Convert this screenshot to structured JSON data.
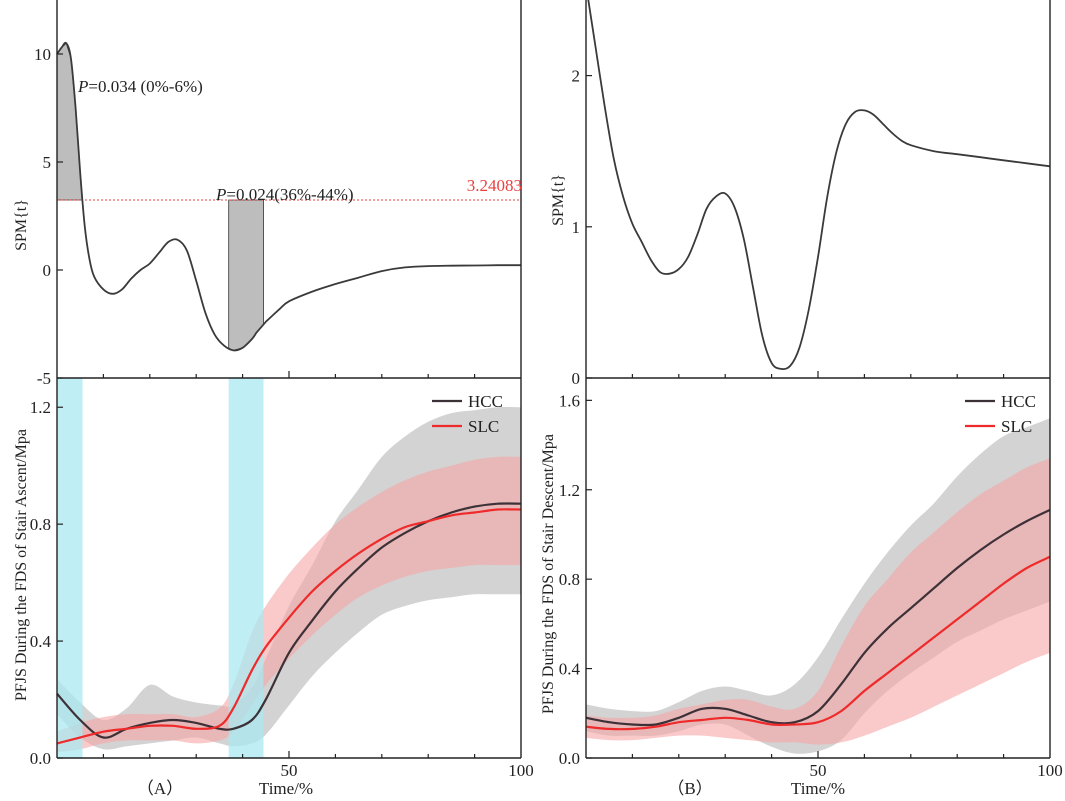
{
  "colors": {
    "hcc": "#3d3138",
    "slc": "#ee2a2a",
    "hcc_band": "#c4c4c4",
    "slc_band": "#f7a5a5",
    "overlap_band": "#d98e8e",
    "cluster_fill": "#bdbdbd",
    "highlight": "#a9e8f2",
    "threshold": "#e8413f",
    "spm_line": "#3a3a3a"
  },
  "figure": {
    "panel_a_label": "（A）",
    "panel_b_label": "（B）",
    "xlabel": "Time/%"
  },
  "chart_data": [
    {
      "id": "A-top",
      "type": "line",
      "ylabel": "SPM{t}",
      "xlim": [
        0,
        100
      ],
      "ylim": [
        -5,
        12.5
      ],
      "yticks": [
        -5,
        0,
        5,
        10
      ],
      "ytick_labels": [
        "-5",
        "0",
        "5",
        "10"
      ],
      "threshold": 3.24083,
      "threshold_label": "3.24083",
      "clusters": [
        {
          "from": 0,
          "to": 5.5,
          "label_p": "P",
          "label_rest": "=0.034 (0%-6%)"
        },
        {
          "from": 37,
          "to": 44.5,
          "label_p": "P",
          "label_rest": "=0.024(36%-44%)"
        }
      ],
      "series": [
        {
          "name": "SPM{t}",
          "x": [
            0,
            1,
            2,
            3,
            4,
            5,
            6,
            7,
            8,
            10,
            12,
            14,
            16,
            18,
            20,
            22,
            24,
            26,
            28,
            30,
            32,
            34,
            36,
            38,
            40,
            42,
            43,
            44,
            45,
            46,
            48,
            50,
            55,
            60,
            65,
            70,
            75,
            80,
            85,
            90,
            95,
            100
          ],
          "y": [
            10.0,
            10.3,
            10.5,
            9.8,
            7.5,
            4.5,
            2.0,
            0.5,
            -0.3,
            -0.9,
            -1.1,
            -0.9,
            -0.4,
            0.0,
            0.3,
            0.8,
            1.3,
            1.4,
            0.9,
            -0.5,
            -2.0,
            -3.0,
            -3.5,
            -3.72,
            -3.6,
            -3.2,
            -2.9,
            -2.65,
            -2.4,
            -2.2,
            -1.8,
            -1.45,
            -1.0,
            -0.65,
            -0.35,
            -0.05,
            0.12,
            0.18,
            0.2,
            0.21,
            0.22,
            0.22
          ]
        }
      ]
    },
    {
      "id": "A-bottom",
      "type": "line",
      "ylabel": "PFJS During the FDS of Stair Ascent/Mpa",
      "xlim": [
        0,
        100
      ],
      "ylim": [
        0,
        1.3
      ],
      "xticks": [
        50,
        100
      ],
      "xtick_labels": [
        "50",
        "100"
      ],
      "yticks": [
        0.0,
        0.4,
        0.8,
        1.2
      ],
      "ytick_labels": [
        "0.0",
        "0.4",
        "0.8",
        "1.2"
      ],
      "highlights": [
        [
          0,
          5.5
        ],
        [
          37,
          44.5
        ]
      ],
      "legend": [
        "HCC",
        "SLC"
      ],
      "x": [
        0,
        5,
        10,
        15,
        20,
        25,
        30,
        35,
        38,
        42,
        45,
        50,
        55,
        60,
        65,
        70,
        75,
        80,
        85,
        90,
        95,
        100
      ],
      "series": [
        {
          "name": "HCC",
          "values": [
            0.22,
            0.13,
            0.07,
            0.1,
            0.12,
            0.13,
            0.12,
            0.1,
            0.1,
            0.13,
            0.2,
            0.36,
            0.47,
            0.57,
            0.65,
            0.72,
            0.77,
            0.81,
            0.84,
            0.86,
            0.87,
            0.87
          ],
          "lower": [
            0.15,
            0.07,
            0.03,
            0.04,
            0.05,
            0.06,
            0.07,
            0.05,
            0.04,
            0.05,
            0.08,
            0.18,
            0.28,
            0.36,
            0.43,
            0.49,
            0.52,
            0.54,
            0.55,
            0.56,
            0.56,
            0.56
          ],
          "upper": [
            0.27,
            0.19,
            0.13,
            0.17,
            0.25,
            0.21,
            0.19,
            0.18,
            0.18,
            0.24,
            0.34,
            0.52,
            0.66,
            0.81,
            0.92,
            1.03,
            1.1,
            1.15,
            1.18,
            1.19,
            1.2,
            1.2
          ]
        },
        {
          "name": "SLC",
          "values": [
            0.05,
            0.07,
            0.09,
            0.1,
            0.11,
            0.11,
            0.1,
            0.11,
            0.17,
            0.3,
            0.38,
            0.48,
            0.57,
            0.64,
            0.7,
            0.75,
            0.79,
            0.81,
            0.83,
            0.84,
            0.85,
            0.85
          ],
          "lower": [
            0.02,
            0.03,
            0.05,
            0.06,
            0.06,
            0.06,
            0.05,
            0.06,
            0.09,
            0.18,
            0.25,
            0.34,
            0.42,
            0.49,
            0.55,
            0.59,
            0.62,
            0.64,
            0.65,
            0.66,
            0.66,
            0.66
          ],
          "upper": [
            0.09,
            0.12,
            0.14,
            0.15,
            0.15,
            0.15,
            0.14,
            0.17,
            0.25,
            0.43,
            0.52,
            0.63,
            0.72,
            0.8,
            0.86,
            0.91,
            0.95,
            0.98,
            1.0,
            1.02,
            1.03,
            1.03
          ]
        }
      ]
    },
    {
      "id": "B-top",
      "type": "line",
      "ylabel": "SPM{t}",
      "xlim": [
        0,
        100
      ],
      "ylim": [
        0,
        2.5
      ],
      "yticks": [
        0,
        1,
        2
      ],
      "ytick_labels": [
        "0",
        "1",
        "2"
      ],
      "series": [
        {
          "name": "SPM{t}",
          "x": [
            0,
            2,
            4,
            6,
            8,
            10,
            12,
            14,
            16,
            18,
            20,
            22,
            24,
            26,
            28,
            30,
            32,
            34,
            36,
            38,
            40,
            42,
            44,
            46,
            48,
            50,
            52,
            54,
            56,
            58,
            60,
            62,
            64,
            66,
            68,
            70,
            75,
            80,
            85,
            90,
            95,
            100
          ],
          "y": [
            2.6,
            2.2,
            1.8,
            1.45,
            1.2,
            1.02,
            0.9,
            0.78,
            0.7,
            0.69,
            0.72,
            0.8,
            0.95,
            1.12,
            1.2,
            1.22,
            1.13,
            0.92,
            0.6,
            0.28,
            0.1,
            0.06,
            0.08,
            0.2,
            0.45,
            0.8,
            1.2,
            1.5,
            1.68,
            1.76,
            1.77,
            1.74,
            1.68,
            1.62,
            1.57,
            1.54,
            1.5,
            1.48,
            1.46,
            1.44,
            1.42,
            1.4
          ]
        }
      ]
    },
    {
      "id": "B-bottom",
      "type": "line",
      "ylabel": "PFJS During the FDS of Stair Descent/Mpa",
      "xlim": [
        0,
        100
      ],
      "ylim": [
        0,
        1.7
      ],
      "xticks": [
        50,
        100
      ],
      "xtick_labels": [
        "50",
        "100"
      ],
      "yticks": [
        0.0,
        0.4,
        0.8,
        1.2,
        1.6
      ],
      "ytick_labels": [
        "0.0",
        "0.4",
        "0.8",
        "1.2",
        "1.6"
      ],
      "legend": [
        "HCC",
        "SLC"
      ],
      "x": [
        0,
        5,
        10,
        15,
        20,
        25,
        30,
        35,
        40,
        45,
        50,
        55,
        60,
        65,
        70,
        75,
        80,
        85,
        90,
        95,
        100
      ],
      "series": [
        {
          "name": "HCC",
          "values": [
            0.18,
            0.16,
            0.15,
            0.15,
            0.18,
            0.22,
            0.22,
            0.19,
            0.16,
            0.16,
            0.21,
            0.33,
            0.47,
            0.58,
            0.67,
            0.76,
            0.85,
            0.93,
            1.0,
            1.06,
            1.11
          ],
          "lower": [
            0.12,
            0.1,
            0.1,
            0.1,
            0.12,
            0.15,
            0.15,
            0.1,
            0.05,
            0.02,
            0.03,
            0.08,
            0.2,
            0.3,
            0.38,
            0.45,
            0.52,
            0.57,
            0.62,
            0.66,
            0.7
          ],
          "upper": [
            0.24,
            0.22,
            0.21,
            0.21,
            0.25,
            0.3,
            0.32,
            0.3,
            0.28,
            0.33,
            0.45,
            0.62,
            0.78,
            0.92,
            1.04,
            1.14,
            1.26,
            1.36,
            1.44,
            1.48,
            1.52
          ]
        },
        {
          "name": "SLC",
          "values": [
            0.14,
            0.13,
            0.13,
            0.14,
            0.16,
            0.17,
            0.18,
            0.17,
            0.15,
            0.15,
            0.16,
            0.21,
            0.3,
            0.38,
            0.46,
            0.54,
            0.62,
            0.7,
            0.78,
            0.85,
            0.9
          ],
          "lower": [
            0.09,
            0.08,
            0.08,
            0.09,
            0.1,
            0.1,
            0.09,
            0.08,
            0.07,
            0.07,
            0.06,
            0.07,
            0.1,
            0.14,
            0.18,
            0.23,
            0.28,
            0.33,
            0.38,
            0.43,
            0.47
          ],
          "upper": [
            0.19,
            0.18,
            0.18,
            0.19,
            0.22,
            0.24,
            0.26,
            0.26,
            0.23,
            0.22,
            0.3,
            0.5,
            0.68,
            0.8,
            0.92,
            1.01,
            1.1,
            1.18,
            1.24,
            1.3,
            1.34
          ]
        }
      ]
    }
  ]
}
